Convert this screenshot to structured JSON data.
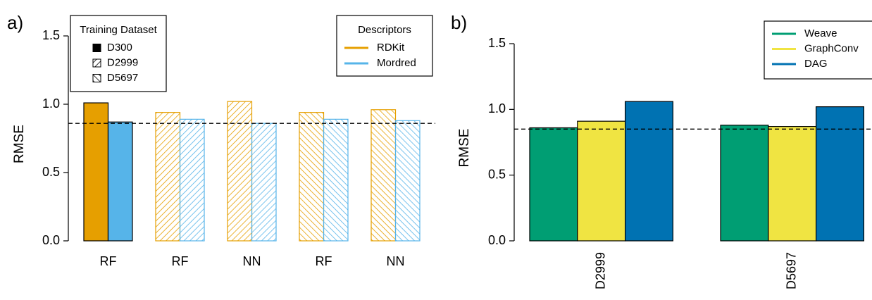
{
  "chart_data": [
    {
      "type": "bar",
      "panel_label": "a)",
      "ylabel": "RMSE",
      "categories": [
        "RF",
        "RF",
        "NN",
        "RF",
        "NN"
      ],
      "category_datasets": [
        "D300",
        "D2999",
        "D2999",
        "D5697",
        "D5697"
      ],
      "series": [
        {
          "name": "RDKit",
          "color": "#e69f00",
          "values": [
            1.01,
            0.94,
            1.02,
            0.94,
            0.96
          ]
        },
        {
          "name": "Mordred",
          "color": "#56b4e9",
          "values": [
            0.87,
            0.89,
            0.86,
            0.89,
            0.88
          ]
        }
      ],
      "legend_title": "Descriptors",
      "pattern_legend_title": "Training Dataset",
      "pattern_legend": [
        {
          "name": "D300",
          "pattern": "solid"
        },
        {
          "name": "D2999",
          "pattern": "forward"
        },
        {
          "name": "D5697",
          "pattern": "backward"
        }
      ],
      "ylim": [
        0,
        1.5
      ],
      "yticks": [
        {
          "value": 0,
          "label": "0.0"
        },
        0.5,
        {
          "value": 1,
          "label": "1.0"
        },
        1.5
      ],
      "reference_line": 0.86
    },
    {
      "type": "bar",
      "panel_label": "b)",
      "ylabel": "RMSE",
      "categories": [
        "D2999",
        "D5697"
      ],
      "series": [
        {
          "name": "Weave",
          "color": "#009e73",
          "values": [
            0.86,
            0.88
          ]
        },
        {
          "name": "GraphConv",
          "color": "#f0e442",
          "values": [
            0.91,
            0.87
          ]
        },
        {
          "name": "DAG",
          "color": "#0072b2",
          "values": [
            1.06,
            1.02
          ]
        }
      ],
      "ylim": [
        0,
        1.5
      ],
      "yticks": [
        {
          "value": 0,
          "label": "0.0"
        },
        0.5,
        {
          "value": 1,
          "label": "1.0"
        },
        1.5
      ],
      "reference_line": 0.85
    }
  ]
}
